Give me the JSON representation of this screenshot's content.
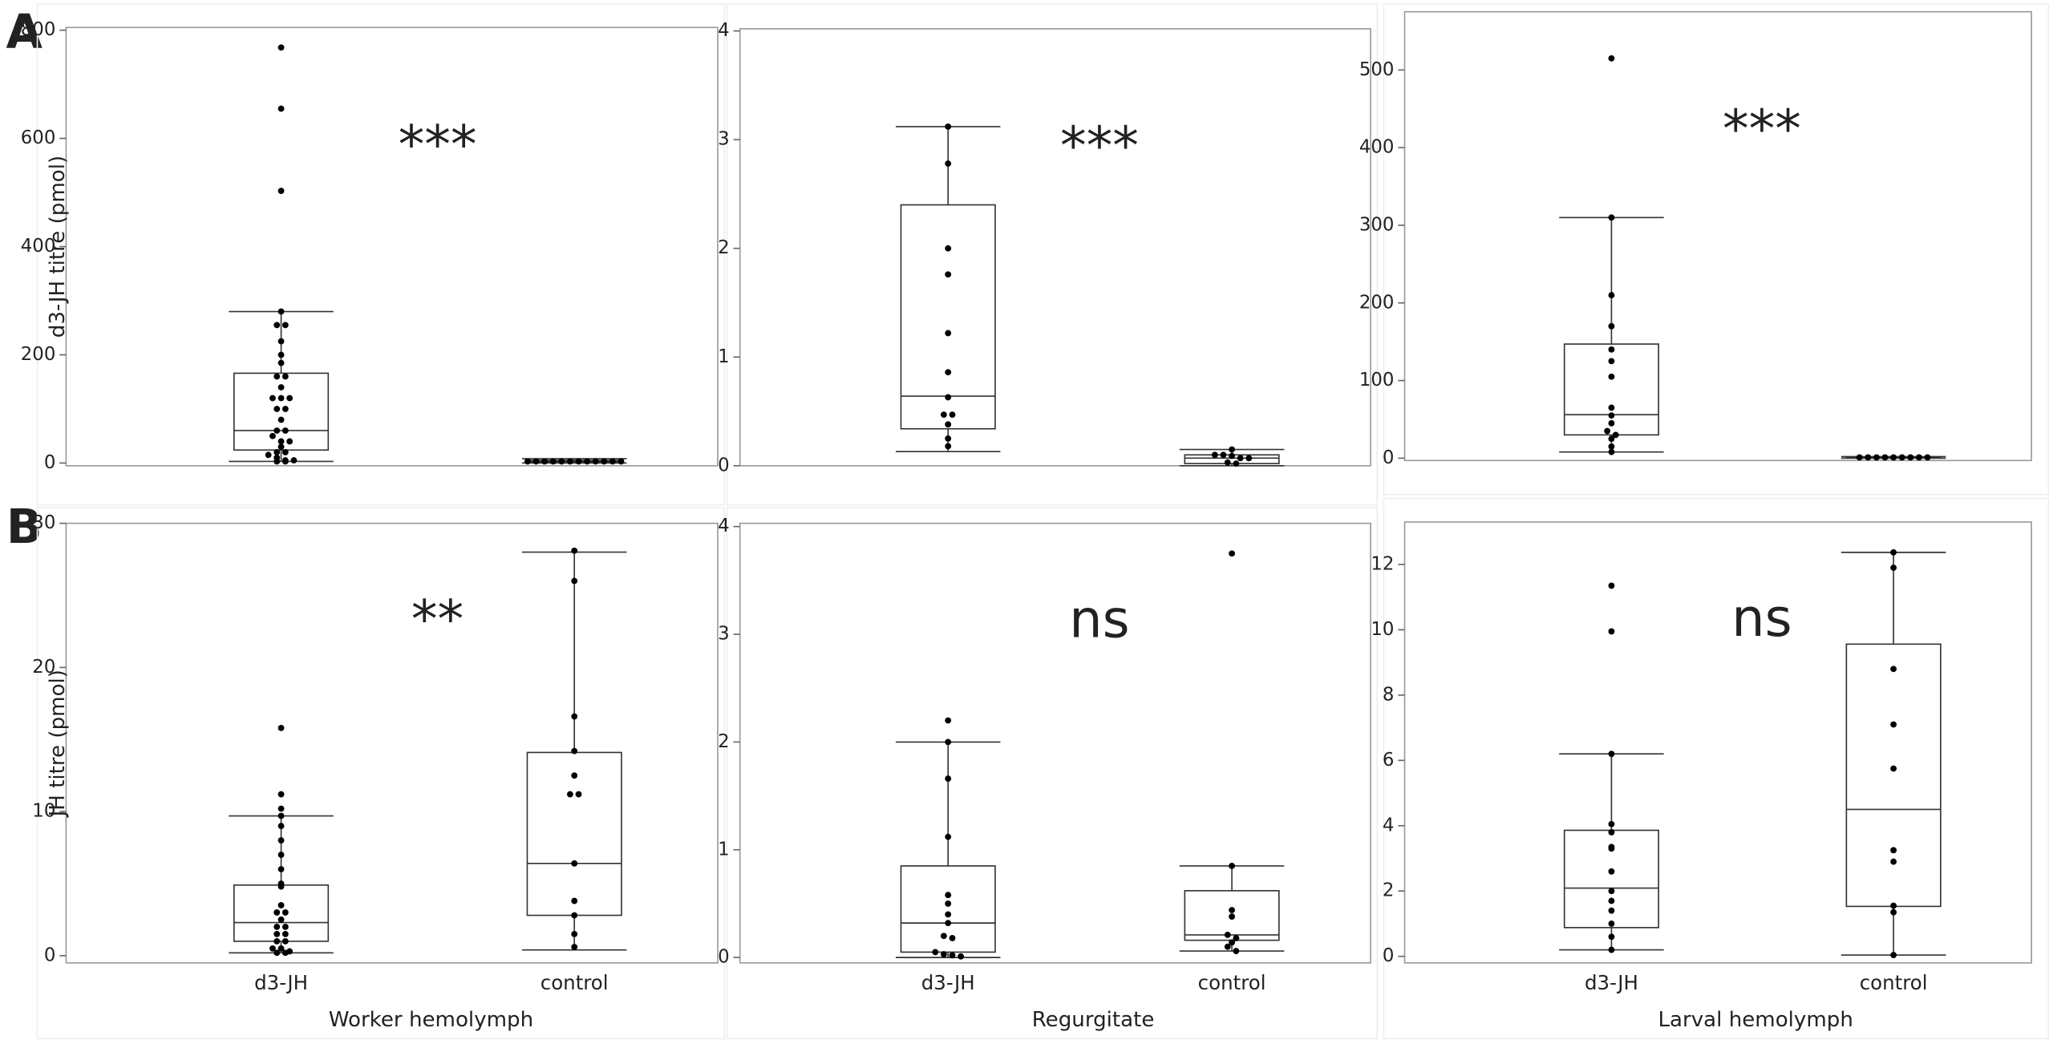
{
  "panel_labels": [
    "A",
    "B"
  ],
  "chart_data": [
    {
      "type": "box",
      "ylabel": "d3-JH titre (pmol)",
      "categories": [
        null,
        null
      ],
      "annotation": "***",
      "ylim": [
        -5,
        805
      ],
      "yticks": [
        0,
        200,
        400,
        600,
        800
      ],
      "boxes": [
        {
          "whislo": 3,
          "q1": 24,
          "med": 60,
          "q3": 166,
          "whishi": 280
        },
        {
          "whislo": 0,
          "q1": 2,
          "med": 3,
          "q3": 5,
          "whishi": 8
        }
      ],
      "points": [
        [
          768,
          655,
          503,
          280,
          255,
          255,
          225,
          200,
          185,
          160,
          160,
          140,
          120,
          120,
          120,
          100,
          100,
          80,
          60,
          60,
          50,
          40,
          40,
          30,
          20,
          20,
          15,
          10,
          5,
          5,
          3,
          3
        ],
        [
          3,
          3,
          3,
          3,
          3,
          3,
          3,
          3,
          3,
          3,
          3,
          3
        ]
      ]
    },
    {
      "type": "box",
      "categories": [
        null,
        null
      ],
      "annotation": "***",
      "ylim": [
        0,
        4.02
      ],
      "yticks": [
        0,
        1,
        2,
        3,
        4
      ],
      "boxes": [
        {
          "whislo": 0.13,
          "q1": 0.34,
          "med": 0.64,
          "q3": 2.4,
          "whishi": 3.12
        },
        {
          "whislo": 0,
          "q1": 0.02,
          "med": 0.07,
          "q3": 0.1,
          "whishi": 0.15
        }
      ],
      "points": [
        [
          3.12,
          2.78,
          2.0,
          1.76,
          1.22,
          0.86,
          0.63,
          0.47,
          0.47,
          0.38,
          0.25,
          0.18
        ],
        [
          0.15,
          0.1,
          0.1,
          0.09,
          0.07,
          0.07,
          0.03,
          0.02
        ]
      ]
    },
    {
      "type": "box",
      "categories": [
        null,
        null
      ],
      "annotation": "***",
      "ylim": [
        -3,
        575
      ],
      "yticks": [
        0,
        100,
        200,
        300,
        400,
        500
      ],
      "boxes": [
        {
          "whislo": 8,
          "q1": 30,
          "med": 56,
          "q3": 147,
          "whishi": 310
        },
        {
          "whislo": 0,
          "q1": 0.5,
          "med": 1,
          "q3": 1.5,
          "whishi": 2
        }
      ],
      "points": [
        [
          515,
          310,
          210,
          170,
          140,
          125,
          105,
          65,
          55,
          45,
          35,
          30,
          25,
          15,
          8
        ],
        [
          1,
          1,
          1,
          1,
          1,
          1,
          1,
          1,
          1
        ]
      ]
    },
    {
      "type": "box",
      "ylabel": "JH titre (pmol)",
      "xlabel": "Worker hemolymph",
      "categories": [
        "d3-JH",
        "control"
      ],
      "annotation": "**",
      "ylim": [
        -0.5,
        30
      ],
      "yticks": [
        0,
        10,
        20,
        30
      ],
      "boxes": [
        {
          "whislo": 0.2,
          "q1": 1.0,
          "med": 2.3,
          "q3": 4.9,
          "whishi": 9.7
        },
        {
          "whislo": 0.4,
          "q1": 2.8,
          "med": 6.4,
          "q3": 14.1,
          "whishi": 28.0
        }
      ],
      "points": [
        [
          15.8,
          11.2,
          10.2,
          9.7,
          9.0,
          8.0,
          7.0,
          6.0,
          5.0,
          4.8,
          3.5,
          3.0,
          3.0,
          2.5,
          2.0,
          2.0,
          1.5,
          1.5,
          1.0,
          1.0,
          0.5,
          0.5,
          0.3,
          0.2,
          0.2
        ],
        [
          28.1,
          26.0,
          16.6,
          14.2,
          12.5,
          11.2,
          11.2,
          6.4,
          3.8,
          2.8,
          1.5,
          0.6
        ]
      ]
    },
    {
      "type": "box",
      "xlabel": "Regurgitate",
      "categories": [
        "d3-JH",
        "control"
      ],
      "annotation": "ns",
      "ylim": [
        -0.05,
        4.03
      ],
      "yticks": [
        0,
        1,
        2,
        3,
        4
      ],
      "boxes": [
        {
          "whislo": 0,
          "q1": 0.05,
          "med": 0.32,
          "q3": 0.85,
          "whishi": 2.0
        },
        {
          "whislo": 0.06,
          "q1": 0.16,
          "med": 0.21,
          "q3": 0.62,
          "whishi": 0.85
        }
      ],
      "points": [
        [
          2.2,
          2.0,
          1.66,
          1.12,
          0.58,
          0.5,
          0.4,
          0.32,
          0.2,
          0.18,
          0.05,
          0.03,
          0.02,
          0.01
        ],
        [
          3.75,
          0.85,
          0.44,
          0.38,
          0.21,
          0.18,
          0.14,
          0.1,
          0.06
        ]
      ]
    },
    {
      "type": "box",
      "xlabel": "Larval hemolymph",
      "categories": [
        "d3-JH",
        "control"
      ],
      "annotation": "ns",
      "ylim": [
        -0.2,
        13.3
      ],
      "yticks": [
        0,
        2,
        4,
        6,
        8,
        10,
        12
      ],
      "boxes": [
        {
          "whislo": 0.2,
          "q1": 0.88,
          "med": 2.09,
          "q3": 3.86,
          "whishi": 6.2
        },
        {
          "whislo": 0.04,
          "q1": 1.53,
          "med": 4.5,
          "q3": 9.56,
          "whishi": 12.37
        }
      ],
      "points": [
        [
          11.35,
          9.95,
          6.2,
          4.05,
          3.8,
          3.35,
          3.3,
          2.6,
          2.0,
          1.7,
          1.4,
          1.0,
          0.6,
          0.2
        ],
        [
          12.37,
          11.9,
          8.8,
          7.1,
          5.75,
          3.25,
          2.9,
          1.55,
          1.35,
          0.04
        ]
      ]
    }
  ]
}
